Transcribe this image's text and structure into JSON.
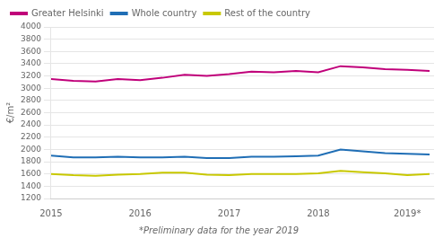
{
  "chart_data": {
    "type": "line",
    "ylabel": "€/m²",
    "footnote": "*Preliminary data for the year 2019",
    "x": [
      2015.0,
      2015.25,
      2015.5,
      2015.75,
      2016.0,
      2016.25,
      2016.5,
      2016.75,
      2017.0,
      2017.25,
      2017.5,
      2017.75,
      2018.0,
      2018.25,
      2018.5,
      2018.75,
      2019.0,
      2019.25
    ],
    "series": [
      {
        "name": "Greater Helsinki",
        "color": "#c0007a",
        "values": [
          3150,
          3120,
          3110,
          3150,
          3130,
          3170,
          3220,
          3200,
          3230,
          3270,
          3260,
          3280,
          3260,
          3360,
          3340,
          3310,
          3300,
          3280
        ]
      },
      {
        "name": "Whole country",
        "color": "#1f6eb5",
        "values": [
          1900,
          1870,
          1870,
          1880,
          1870,
          1870,
          1880,
          1860,
          1860,
          1880,
          1880,
          1890,
          1900,
          2000,
          1970,
          1940,
          1930,
          1920
        ]
      },
      {
        "name": "Rest of the country",
        "color": "#c8c800",
        "values": [
          1600,
          1580,
          1570,
          1590,
          1600,
          1620,
          1620,
          1590,
          1580,
          1600,
          1600,
          1600,
          1610,
          1650,
          1630,
          1610,
          1580,
          1600
        ]
      }
    ],
    "xlim": [
      2015.0,
      2019.3
    ],
    "xticks": [
      2015,
      2016,
      2017,
      2018,
      {
        "value": 2019,
        "label": "2019*"
      }
    ],
    "ylim": [
      1200,
      4000
    ],
    "yticks": [
      1200,
      1400,
      1600,
      1800,
      2000,
      2200,
      2400,
      2600,
      2800,
      3000,
      3200,
      3400,
      3600,
      3800,
      4000
    ],
    "grid": "y",
    "legend": "upper left"
  }
}
